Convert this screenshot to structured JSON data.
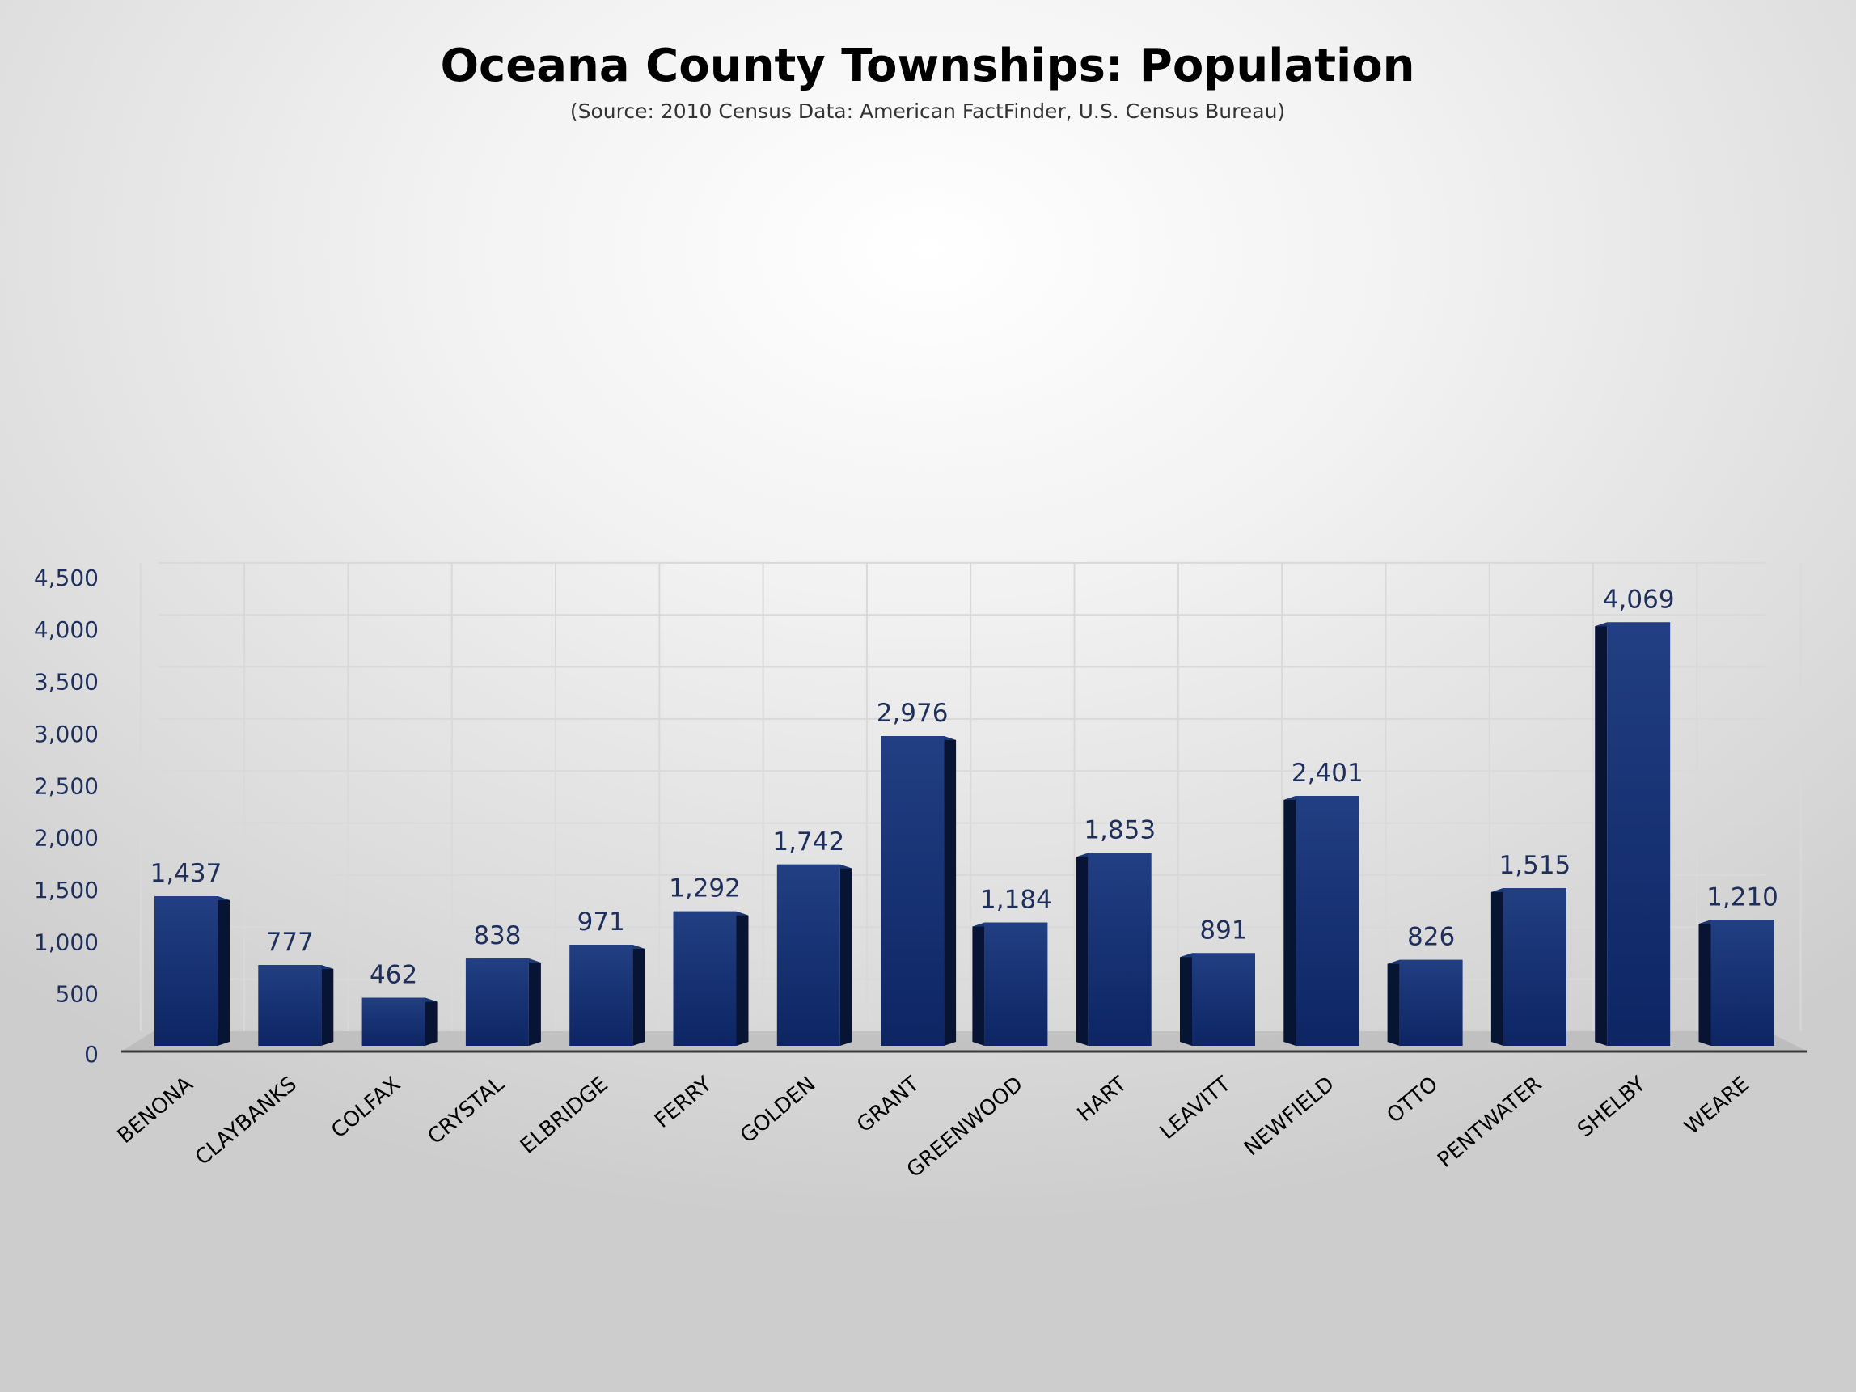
{
  "chart_data": {
    "type": "bar",
    "title": "Oceana County Townships: Population",
    "subtitle": "(Source: 2010 Census Data: American FactFinder, U.S. Census Bureau)",
    "xlabel": "",
    "ylabel": "",
    "ylim": [
      0,
      4500
    ],
    "y_ticks": [
      0,
      500,
      1000,
      1500,
      2000,
      2500,
      3000,
      3500,
      4000,
      4500
    ],
    "y_tick_labels": [
      "0",
      "500",
      "1,000",
      "1,500",
      "2,000",
      "2,500",
      "3,000",
      "3,500",
      "4,000",
      "4,500"
    ],
    "grid": true,
    "legend": "none",
    "categories": [
      "BENONA",
      "CLAYBANKS",
      "COLFAX",
      "CRYSTAL",
      "ELBRIDGE",
      "FERRY",
      "GOLDEN",
      "GRANT",
      "GREENWOOD",
      "HART",
      "LEAVITT",
      "NEWFIELD",
      "OTTO",
      "PENTWATER",
      "SHELBY",
      "WEARE"
    ],
    "values": [
      1437,
      777,
      462,
      838,
      971,
      1292,
      1742,
      2976,
      1184,
      1853,
      891,
      2401,
      826,
      1515,
      4069,
      1210
    ],
    "value_labels": [
      "1,437",
      "777",
      "462",
      "838",
      "971",
      "1,292",
      "1,742",
      "2,976",
      "1,184",
      "1,853",
      "891",
      "2,401",
      "826",
      "1,515",
      "4,069",
      "1,210"
    ],
    "colors": {
      "bar_front": "#0d2563",
      "bar_front_light": "#213f82",
      "bar_side": "#081433",
      "bar_top": "#1a3775",
      "grid": "#d9d9d9",
      "axis": "#3a3a3a",
      "floor": "#b0b0b0"
    }
  }
}
